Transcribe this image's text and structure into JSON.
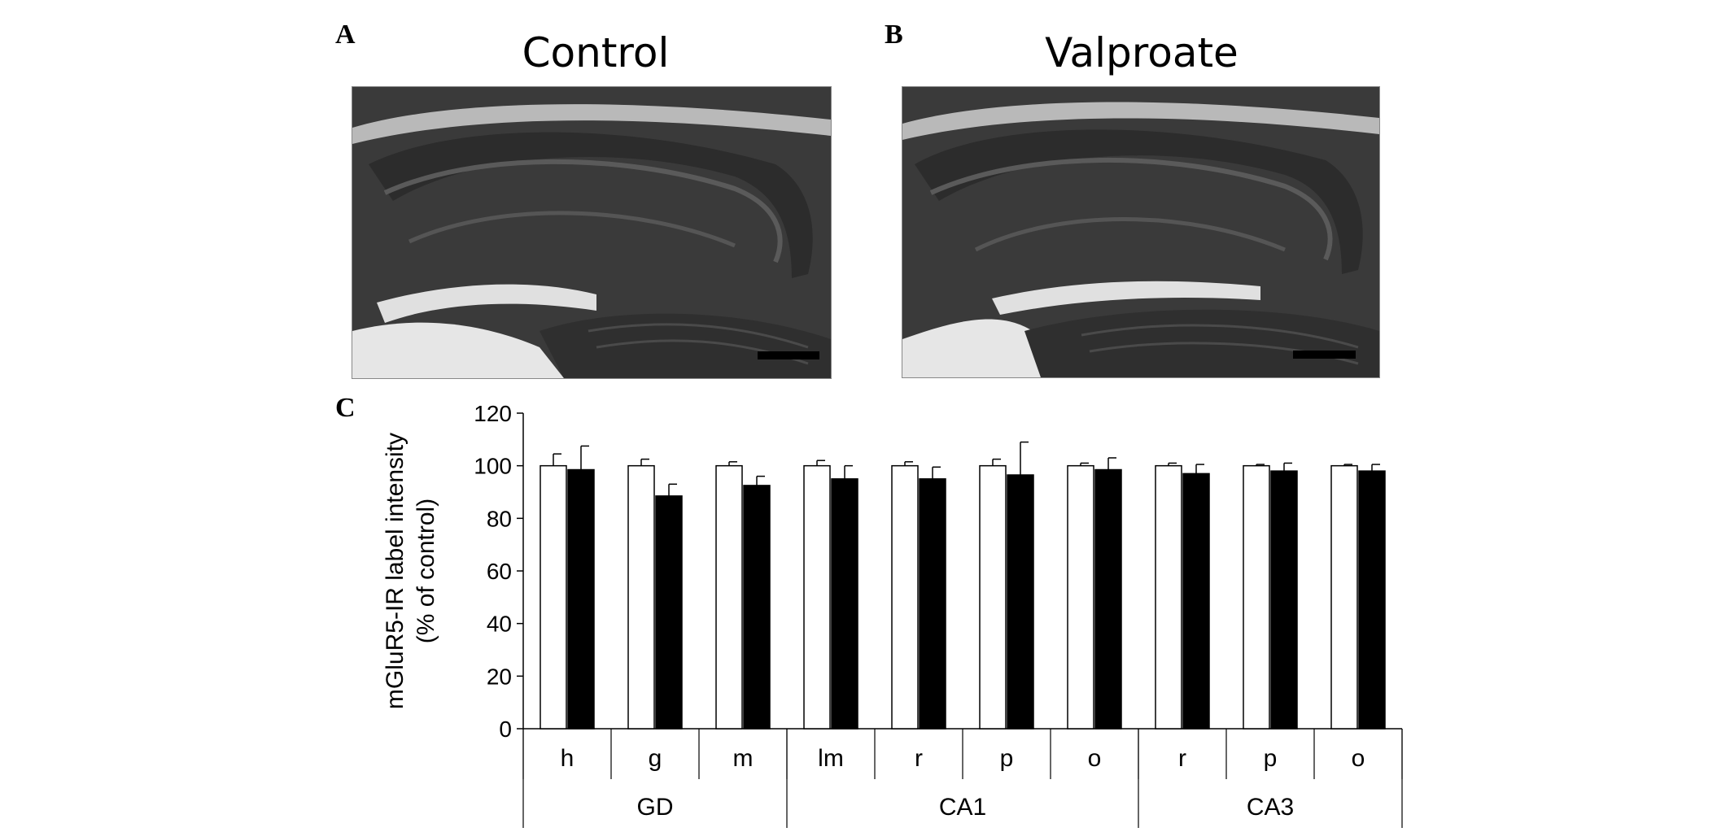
{
  "panels": {
    "a": {
      "letter": "A",
      "title": "Control"
    },
    "b": {
      "letter": "B",
      "title": "Valproate"
    },
    "c": {
      "letter": "C"
    }
  },
  "colors": {
    "control_bar": "#ffffff",
    "valproate_bar": "#000000",
    "axis": "#000000",
    "tissue": "#3d3d3d",
    "tissue_light": "#d9d9d9"
  },
  "chart_data": {
    "type": "bar",
    "ylabel": [
      "mGluR5-IR label intensity",
      "(% of control)"
    ],
    "xlabel": "",
    "ylim": [
      0,
      120
    ],
    "yticks": [
      0,
      20,
      40,
      60,
      80,
      100,
      120
    ],
    "grid": false,
    "legend": "none",
    "categories": [
      "h",
      "g",
      "m",
      "lm",
      "r",
      "p",
      "o",
      "r",
      "p",
      "o"
    ],
    "groups": [
      {
        "label": "GD",
        "count": 3
      },
      {
        "label": "CA1",
        "count": 4
      },
      {
        "label": "CA3",
        "count": 3
      }
    ],
    "series": [
      {
        "values": [
          100,
          100,
          100,
          100,
          100,
          100,
          100,
          100,
          100,
          100
        ],
        "errors": [
          4.5,
          2.5,
          1.5,
          2,
          1.5,
          2.5,
          1,
          1,
          0.5,
          0.5
        ],
        "color": "#ffffff"
      },
      {
        "values": [
          98.5,
          88.5,
          92.5,
          95,
          95,
          96.5,
          98.5,
          97,
          98,
          98
        ],
        "errors": [
          9,
          4.5,
          3.5,
          5,
          4.5,
          12.5,
          4.5,
          3.5,
          3,
          2.5
        ],
        "color": "#000000"
      }
    ]
  }
}
